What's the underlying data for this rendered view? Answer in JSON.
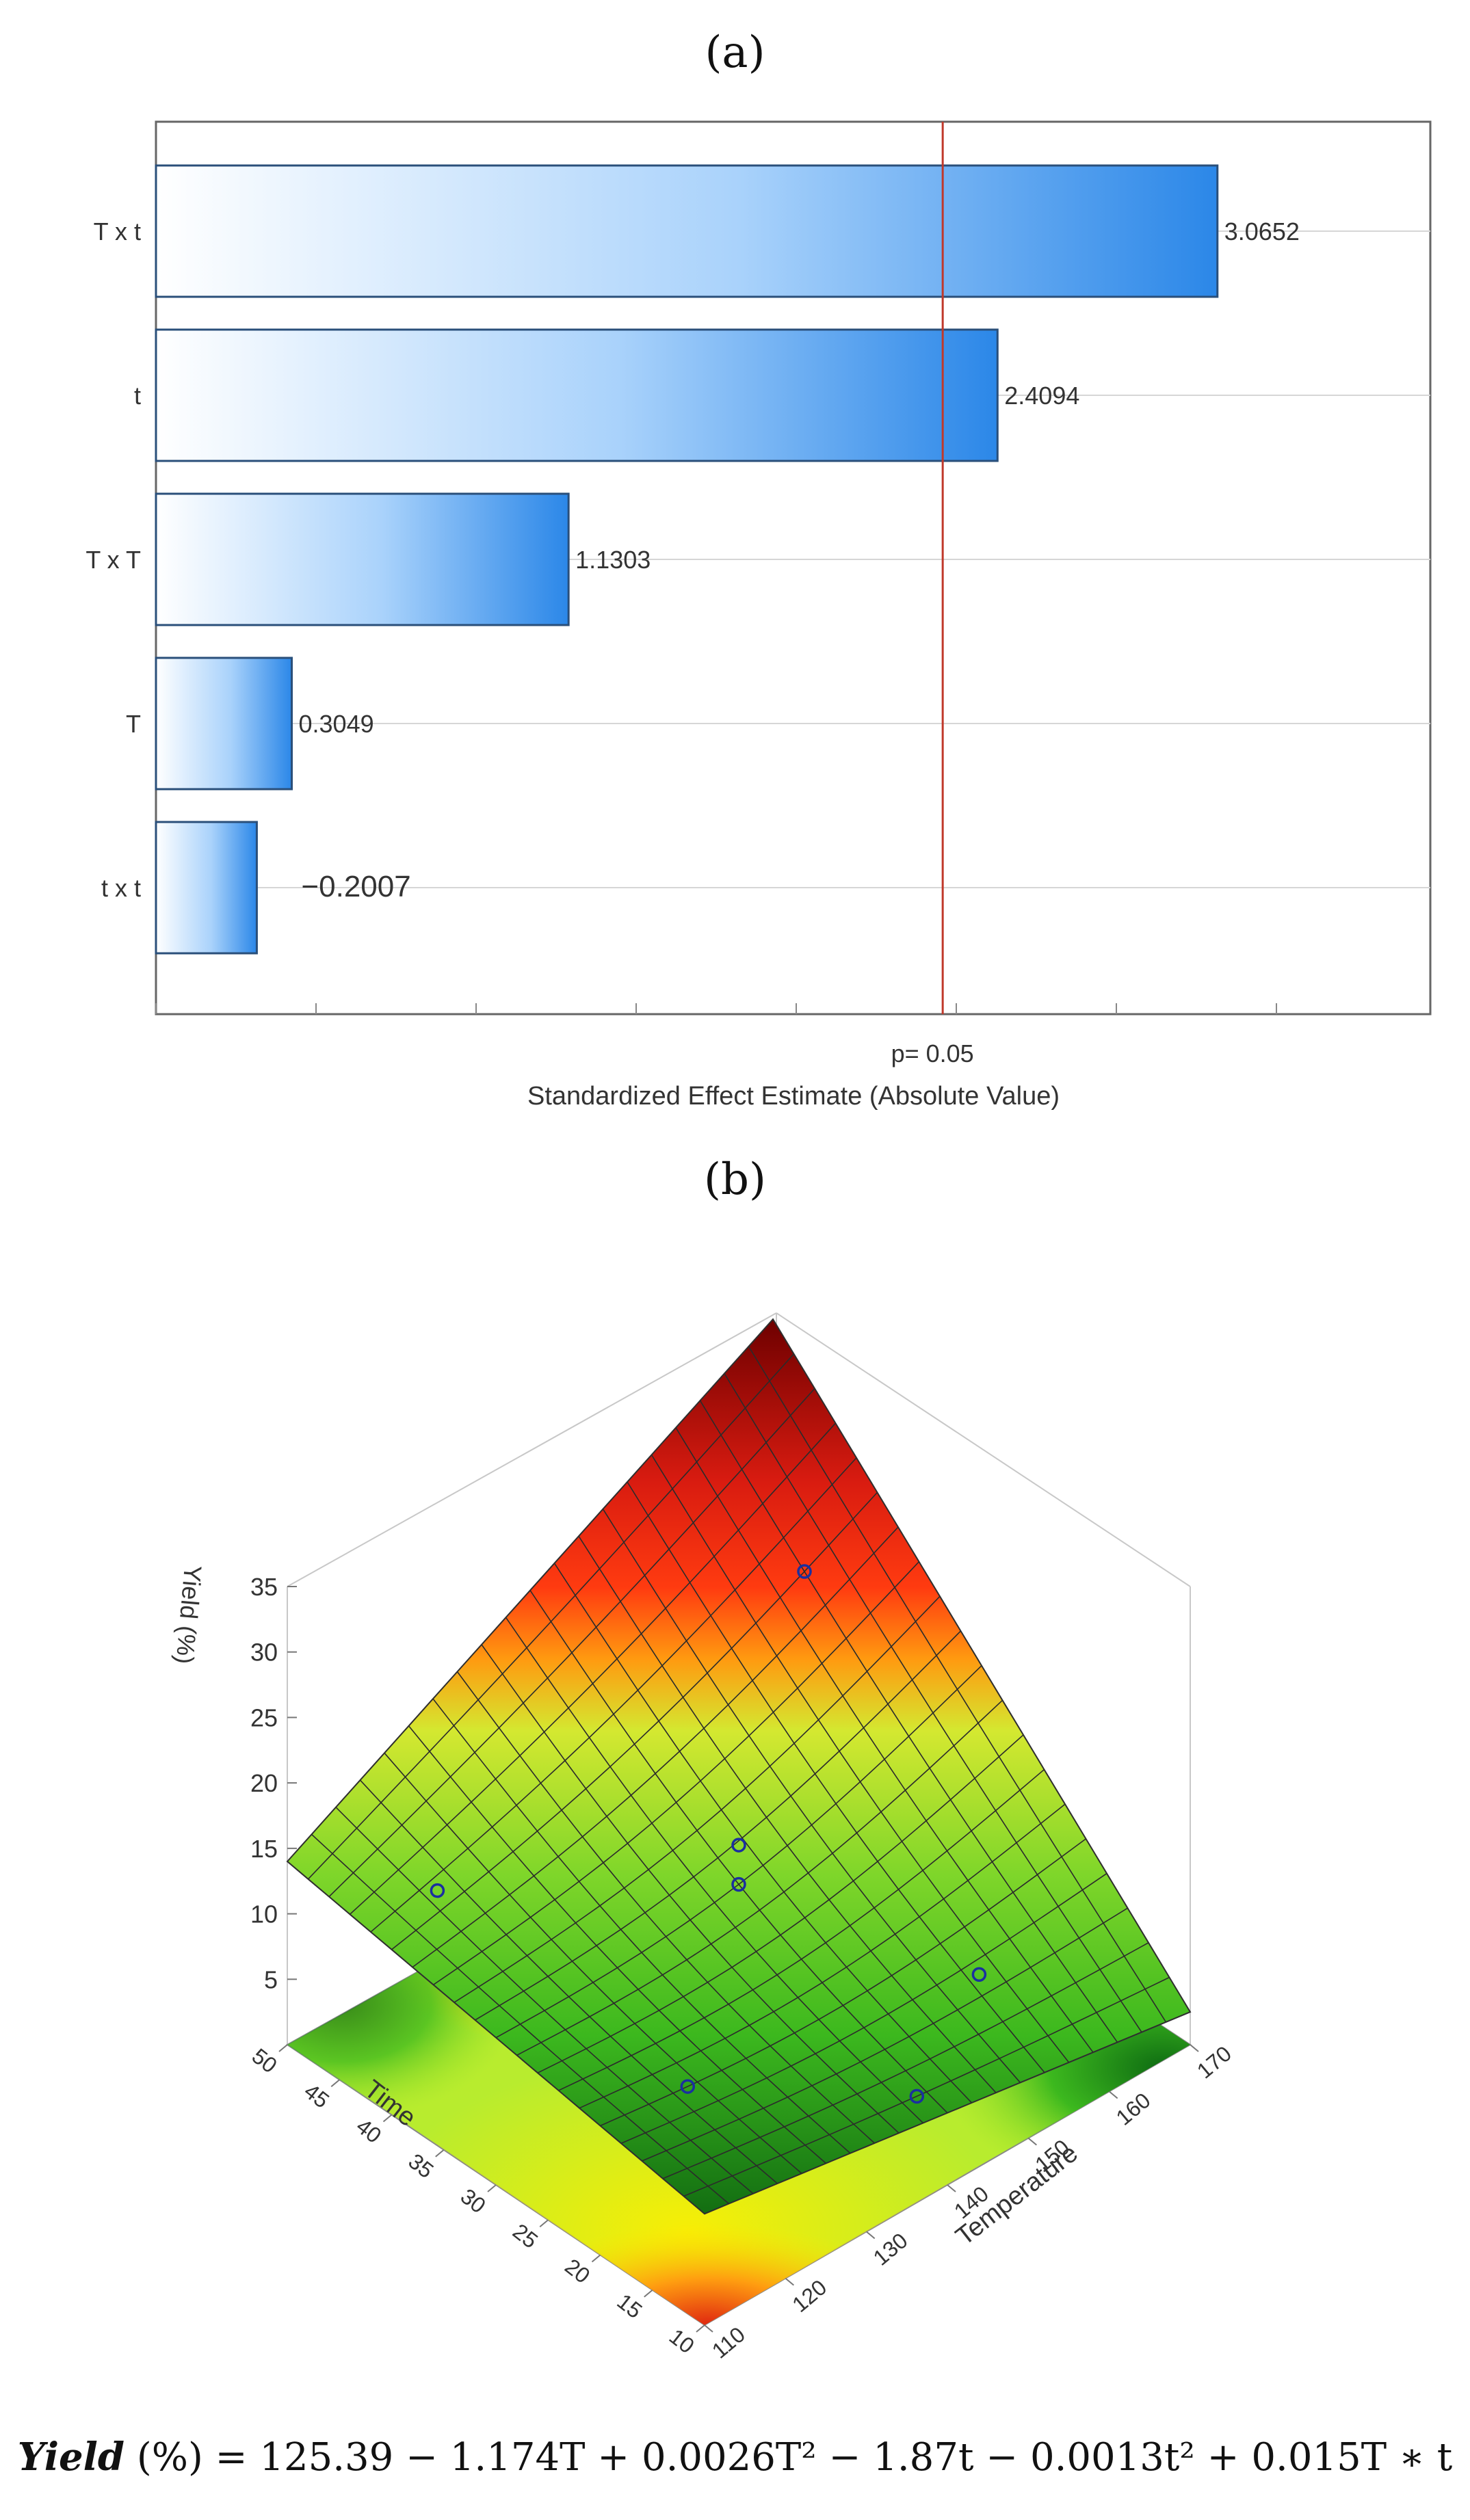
{
  "panels": {
    "a": "(a)",
    "b": "(b)"
  },
  "chart_data": [
    {
      "type": "bar",
      "orientation": "horizontal",
      "title": "",
      "categories": [
        "T x t",
        "t",
        "T x T",
        "T",
        "t x t"
      ],
      "values": [
        3.0652,
        2.4094,
        1.1303,
        0.3049,
        -0.2007
      ],
      "value_labels": [
        "3.0652",
        "2.4094",
        "1.1303",
        "0.3049",
        "−0.2007"
      ],
      "bar_lengths_absolute": [
        3.0652,
        2.4094,
        1.1303,
        0.3049,
        0.2007
      ],
      "xlabel": "Standardized Effect Estimate (Absolute Value)",
      "ylabel": "",
      "xlim": [
        -0.1,
        3.7
      ],
      "reference_line": {
        "value": 2.246,
        "label": "p= 0.05",
        "color": "#c0392b"
      },
      "grid": true,
      "bar_color": "#2b87e8"
    },
    {
      "type": "surface",
      "title": "",
      "xlabel": "Temperature",
      "ylabel": "Time",
      "zlabel": "Yield (%)",
      "x_ticks": [
        "110",
        "120",
        "130",
        "140",
        "150",
        "160",
        "170"
      ],
      "y_ticks": [
        "10",
        "15",
        "20",
        "25",
        "30",
        "35",
        "40",
        "45",
        "50"
      ],
      "z_ticks": [
        "5",
        "10",
        "15",
        "20",
        "25",
        "30",
        "35"
      ],
      "xlim": [
        110,
        170
      ],
      "ylim": [
        10,
        50
      ],
      "zlim": [
        0,
        35
      ],
      "colormap": [
        "#006400",
        "#32cd32",
        "#adff2f",
        "#ffff00",
        "#ffa500",
        "#ff0000",
        "#8b0000"
      ],
      "contour_projection": true
    }
  ],
  "equation": {
    "lhs_bold": "Yield",
    "rest": " (%) = 125.39 − 1.174T + 0.0026T² − 1.87t − 0.0013t² + 0.015T ∗ t"
  }
}
